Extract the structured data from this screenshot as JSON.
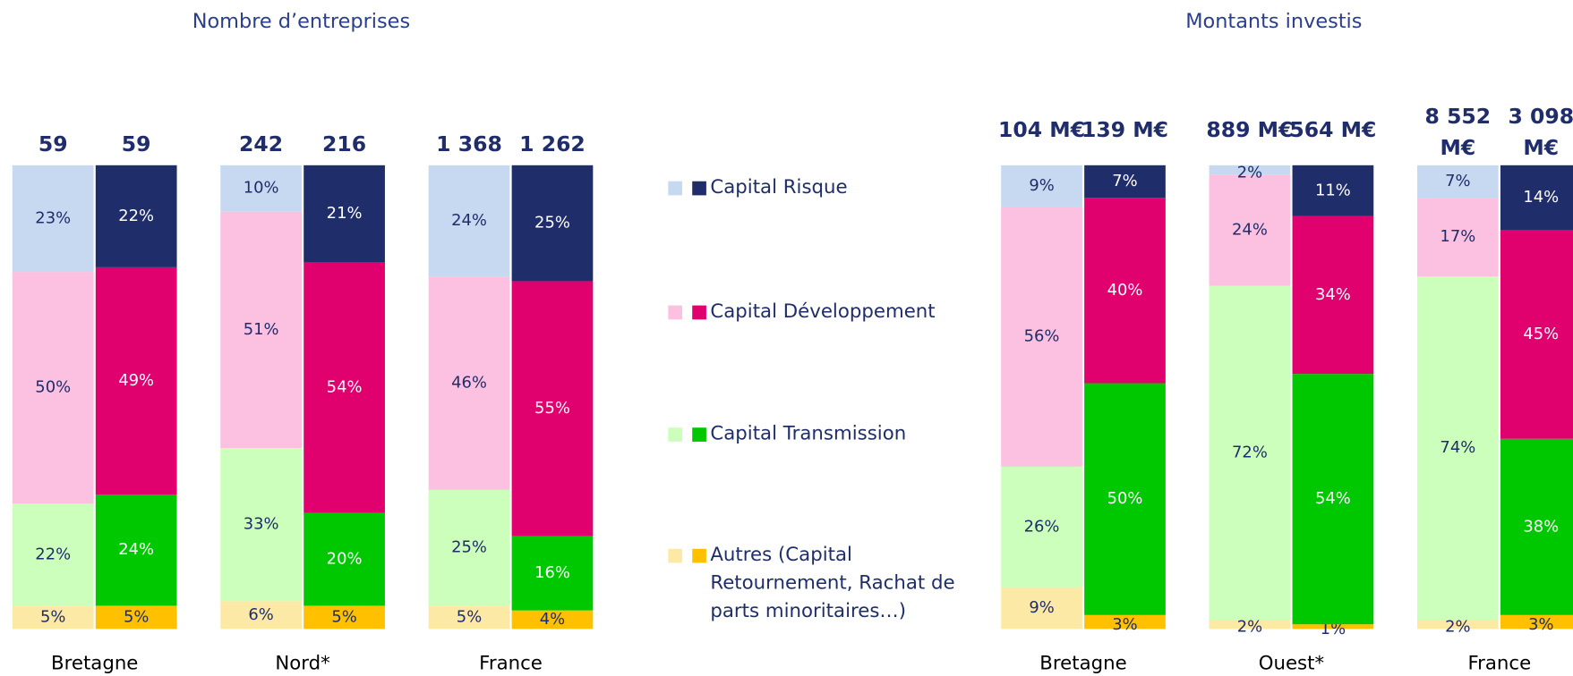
{
  "chart_data": [
    {
      "type": "bar",
      "stacked": true,
      "title": "Nombre d’entreprises",
      "ylim": [
        0,
        100
      ],
      "categories": [
        "Bretagne",
        "Nord*",
        "France"
      ],
      "totals": [
        [
          59,
          59
        ],
        [
          242,
          216
        ],
        [
          {
            "value": 1368,
            "label": "1 368"
          },
          {
            "value": 1262,
            "label": "1 262"
          }
        ]
      ],
      "series": [
        {
          "name": "Autres (Capital Retournement, Rachat de parts minoritaires…)",
          "colors": [
            "#fde9a6",
            "#ffc000"
          ],
          "label_colors": [
            "#1f2d6b",
            "#1f2d6b"
          ],
          "values": [
            [
              5,
              5
            ],
            [
              6,
              5
            ],
            [
              5,
              4
            ]
          ],
          "value_labels": [
            [
              "5%",
              "5%"
            ],
            [
              "6%",
              "5%"
            ],
            [
              "5%",
              "4%"
            ]
          ]
        },
        {
          "name": "Capital Transmission",
          "colors": [
            "#ccffbb",
            "#00c800"
          ],
          "label_colors": [
            "#1f2d6b",
            "#ffffff"
          ],
          "values": [
            [
              22,
              24
            ],
            [
              33,
              20
            ],
            [
              25,
              16
            ]
          ],
          "value_labels": [
            [
              "22%",
              "24%"
            ],
            [
              "33%",
              "20%"
            ],
            [
              "25%",
              "16%"
            ]
          ]
        },
        {
          "name": "Capital Développement",
          "colors": [
            "#fcc0e0",
            "#e0006e"
          ],
          "label_colors": [
            "#1f2d6b",
            "#ffffff"
          ],
          "values": [
            [
              50,
              49
            ],
            [
              51,
              54
            ],
            [
              46,
              55
            ]
          ],
          "value_labels": [
            [
              "50%",
              "49%"
            ],
            [
              "51%",
              "54%"
            ],
            [
              "46%",
              "55%"
            ]
          ]
        },
        {
          "name": "Capital Risque",
          "colors": [
            "#c6d9f1",
            "#1f2d6b"
          ],
          "label_colors": [
            "#1f2d6b",
            "#ffffff"
          ],
          "values": [
            [
              23,
              22
            ],
            [
              10,
              21
            ],
            [
              24,
              25
            ]
          ],
          "value_labels": [
            [
              "23%",
              "22%"
            ],
            [
              "10%",
              "21%"
            ],
            [
              "24%",
              "25%"
            ]
          ]
        }
      ]
    },
    {
      "type": "bar",
      "stacked": true,
      "title": "Montants investis",
      "ylim": [
        0,
        100
      ],
      "categories": [
        "Bretagne",
        "Ouest*",
        "France"
      ],
      "totals": [
        [
          {
            "value": 104,
            "label": "104 M€"
          },
          {
            "value": 139,
            "label": "139 M€"
          }
        ],
        [
          {
            "value": 889,
            "label": "889 M€"
          },
          {
            "value": 564,
            "label": "564 M€"
          }
        ],
        [
          {
            "value": 8552,
            "label": "8 552 M€"
          },
          {
            "value": 3098,
            "label": "3 098 M€"
          }
        ]
      ],
      "series": [
        {
          "colors": [
            "#fde9a6",
            "#ffc000"
          ],
          "label_colors": [
            "#1f2d6b",
            "#1f2d6b"
          ],
          "values": [
            [
              9,
              3
            ],
            [
              2,
              1
            ],
            [
              2,
              3
            ]
          ],
          "value_labels": [
            [
              "9%",
              "3%"
            ],
            [
              "2%",
              "1%"
            ],
            [
              "2%",
              "3%"
            ]
          ]
        },
        {
          "colors": [
            "#ccffbb",
            "#00c800"
          ],
          "label_colors": [
            "#1f2d6b",
            "#ffffff"
          ],
          "values": [
            [
              26,
              50
            ],
            [
              72,
              54
            ],
            [
              74,
              38
            ]
          ],
          "value_labels": [
            [
              "26%",
              "50%"
            ],
            [
              "72%",
              "54%"
            ],
            [
              "74%",
              "38%"
            ]
          ]
        },
        {
          "colors": [
            "#fcc0e0",
            "#e0006e"
          ],
          "label_colors": [
            "#1f2d6b",
            "#ffffff"
          ],
          "values": [
            [
              56,
              40
            ],
            [
              24,
              34
            ],
            [
              17,
              45
            ]
          ],
          "value_labels": [
            [
              "56%",
              "40%"
            ],
            [
              "24%",
              "34%"
            ],
            [
              "17%",
              "45%"
            ]
          ]
        },
        {
          "colors": [
            "#c6d9f1",
            "#1f2d6b"
          ],
          "label_colors": [
            "#1f2d6b",
            "#ffffff"
          ],
          "values": [
            [
              9,
              7
            ],
            [
              2,
              11
            ],
            [
              7,
              14
            ]
          ],
          "value_labels": [
            [
              "9%",
              "7%"
            ],
            [
              "2%",
              "11%"
            ],
            [
              "7%",
              "14%"
            ]
          ]
        }
      ]
    }
  ]
}
